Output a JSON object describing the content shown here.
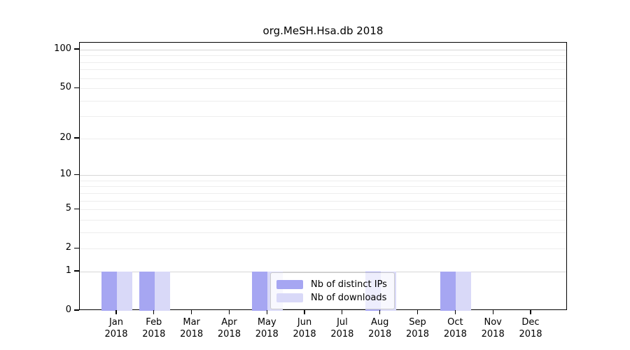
{
  "chart": {
    "title": "org.MeSH.Hsa.db 2018"
  },
  "chart_data": {
    "type": "bar",
    "title": "org.MeSH.Hsa.db 2018",
    "categories": [
      "Jan",
      "Feb",
      "Mar",
      "Apr",
      "May",
      "Jun",
      "Jul",
      "Aug",
      "Sep",
      "Oct",
      "Nov",
      "Dec"
    ],
    "year": "2018",
    "series": [
      {
        "name": "Nb of distinct IPs",
        "color": "#a6a6f2",
        "values": [
          1,
          1,
          0,
          0,
          1,
          0,
          0,
          1,
          0,
          1,
          0,
          0
        ]
      },
      {
        "name": "Nb of downloads",
        "color": "#d9d9f8",
        "values": [
          1,
          1,
          0,
          0,
          1,
          0,
          0,
          1,
          0,
          1,
          0,
          0
        ]
      }
    ],
    "xlabel": "",
    "ylabel": "",
    "yscale": "log1p",
    "ylim": [
      0,
      110
    ],
    "yticks": [
      0,
      1,
      2,
      5,
      10,
      20,
      50,
      100
    ],
    "grid": {
      "orientation": "horizontal",
      "minor_values": [
        2,
        3,
        4,
        5,
        6,
        7,
        8,
        9,
        20,
        30,
        40,
        50,
        60,
        70,
        80,
        90
      ],
      "major_values": [
        1,
        10,
        100
      ],
      "minor_color": "#ededed",
      "major_color": "#d6d6d6"
    },
    "legend_position": "lower center (over May bars)",
    "axis_color": "#000000",
    "background_color": "#ffffff"
  }
}
